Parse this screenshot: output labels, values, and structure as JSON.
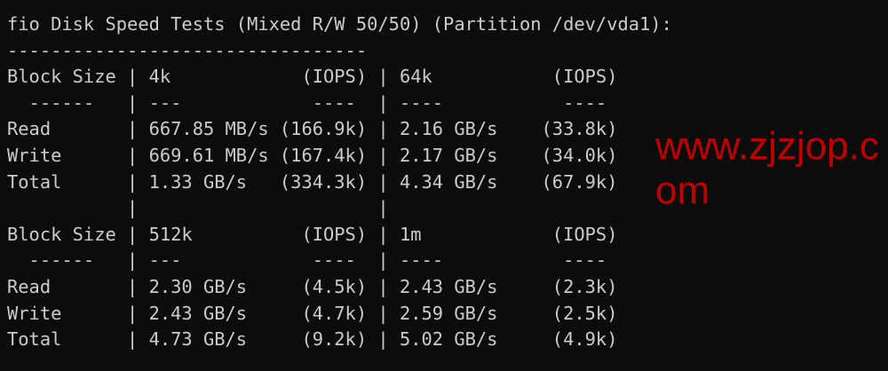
{
  "terminal": {
    "lines": [
      "fio Disk Speed Tests (Mixed R/W 50/50) (Partition /dev/vda1):",
      "---------------------------------",
      "Block Size | 4k            (IOPS) | 64k           (IOPS)",
      "  ------   | ---            ----  | ----           ---- ",
      "Read       | 667.85 MB/s (166.9k) | 2.16 GB/s    (33.8k)",
      "Write      | 669.61 MB/s (167.4k) | 2.17 GB/s    (34.0k)",
      "Total      | 1.33 GB/s   (334.3k) | 4.34 GB/s    (67.9k)",
      "           |                      |",
      "Block Size | 512k          (IOPS) | 1m            (IOPS)",
      "  ------   | ---            ----  | ----           ---- ",
      "Read       | 2.30 GB/s     (4.5k) | 2.43 GB/s     (2.3k)",
      "Write      | 2.43 GB/s     (4.7k) | 2.59 GB/s     (2.5k)",
      "Total      | 4.73 GB/s     (9.2k) | 5.02 GB/s     (4.9k)"
    ]
  },
  "watermark": {
    "text": "www.zjzjop.com",
    "color": "#c00000"
  },
  "colors": {
    "background": "#0c0c0c",
    "text": "#cccccc"
  }
}
